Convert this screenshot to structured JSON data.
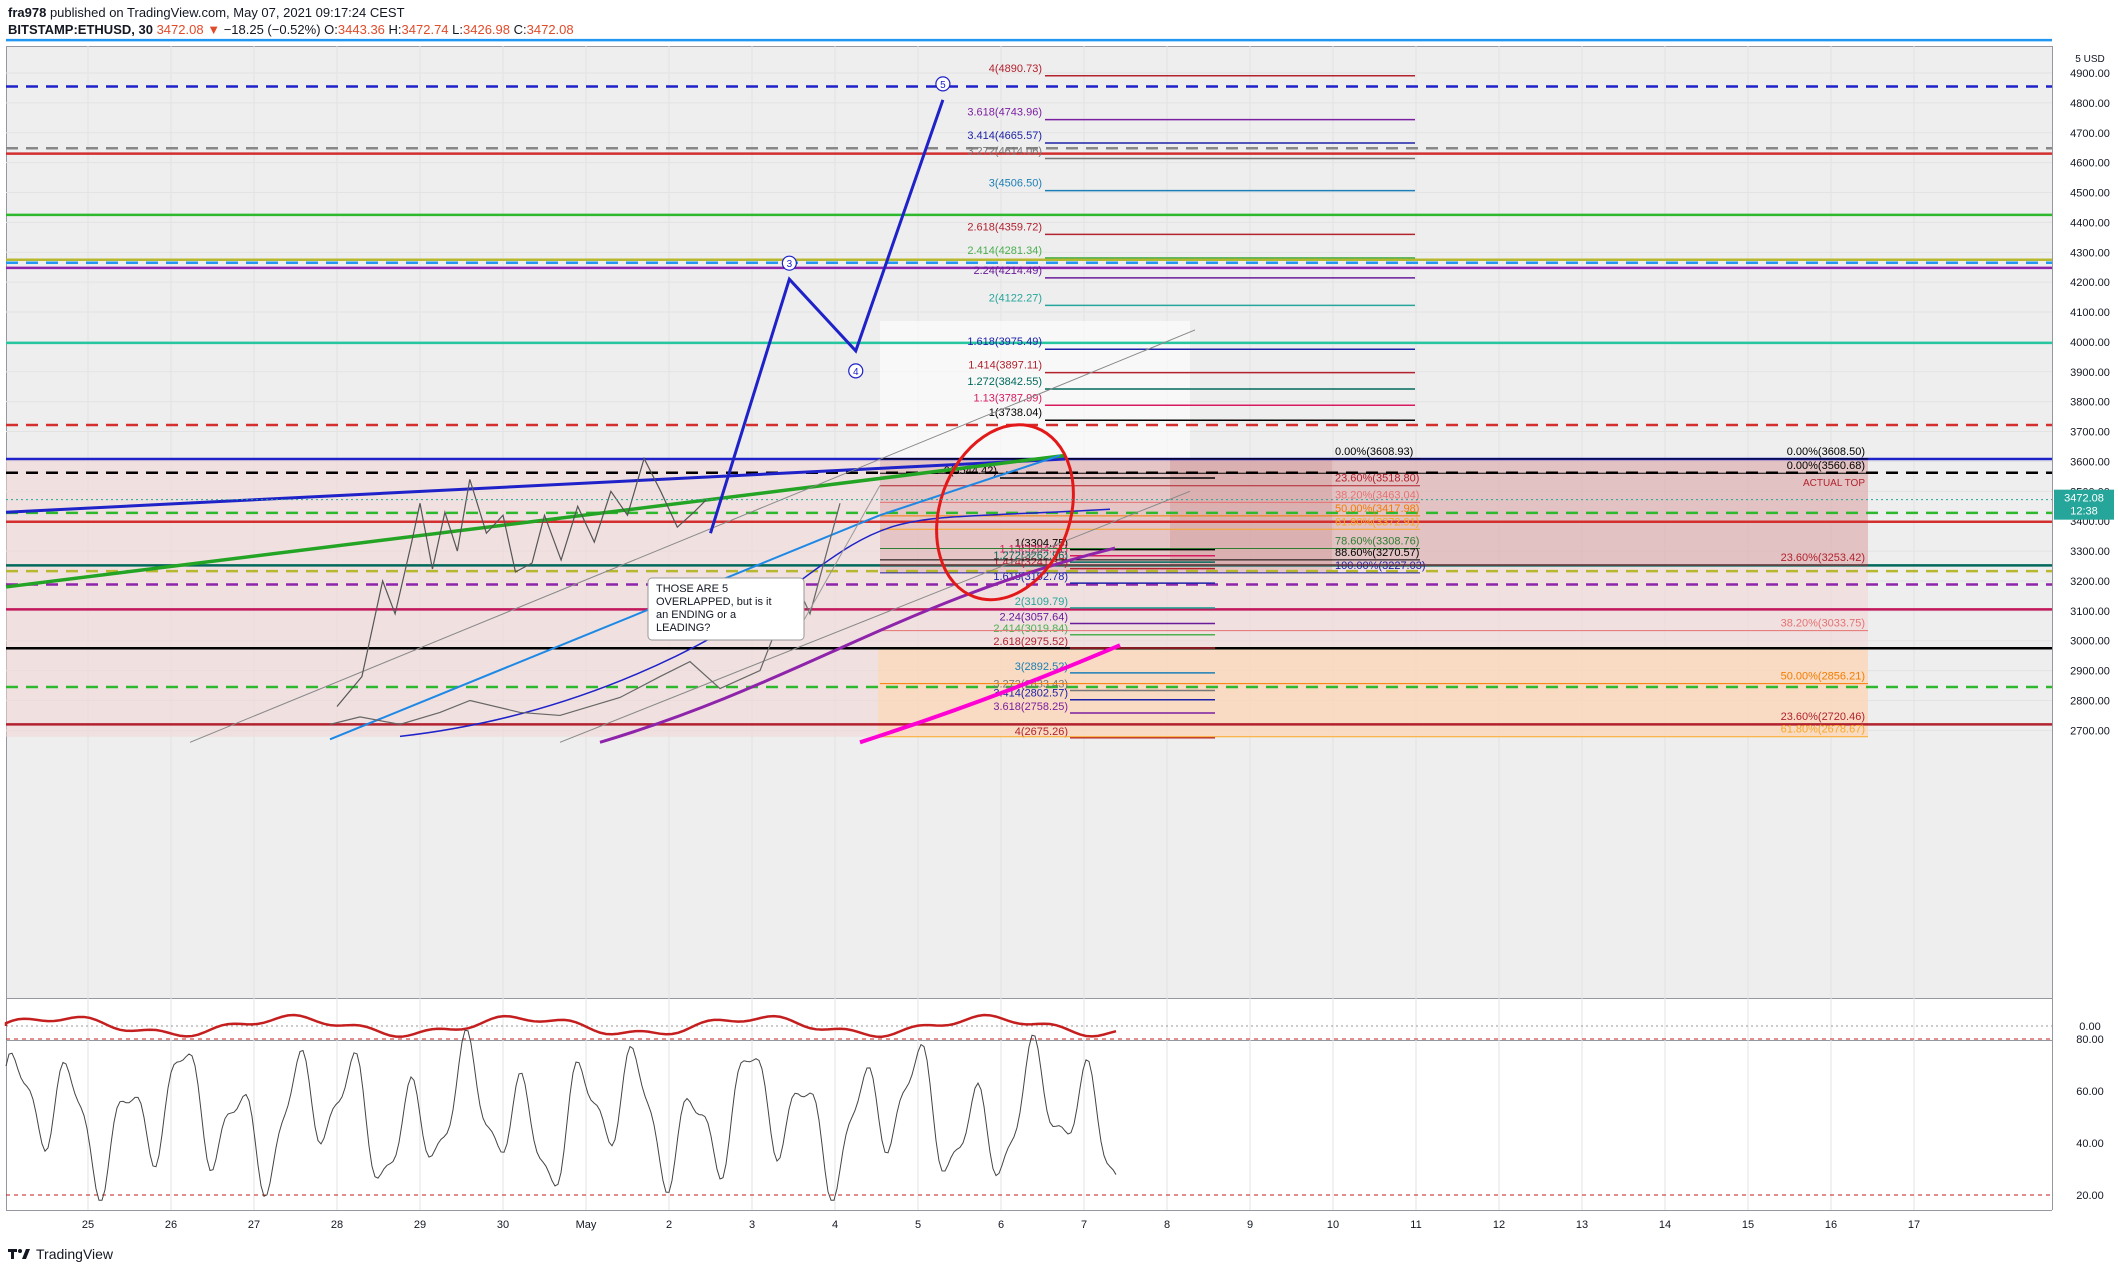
{
  "header": {
    "author": "fra978",
    "published": "published on TradingView.com, May 07, 2021 09:17:24 CEST",
    "symbol": "BITSTAMP:ETHUSD, 30",
    "last": "3472.08",
    "change": "−18.25 (−0.52%)",
    "o_label": "O:",
    "o": "3443.36",
    "h_label": "H:",
    "h": "3472.74",
    "l_label": "L:",
    "l": "3426.98",
    "c_label": "C:",
    "c": "3472.08"
  },
  "footer": {
    "brand": "TradingView"
  },
  "colors": {
    "up": "#e04b2a",
    "blue_wave": "#1e22c8",
    "grid": "#e0e3eb",
    "bg": "#eeeeee"
  },
  "chart_data": {
    "type": "line",
    "currency": "5 USD",
    "price_axis": [
      {
        "value": 4900,
        "label": "4900.00"
      },
      {
        "value": 4800,
        "label": "4800.00"
      },
      {
        "value": 4700,
        "label": "4700.00"
      },
      {
        "value": 4600,
        "label": "4600.00"
      },
      {
        "value": 4500,
        "label": "4500.00"
      },
      {
        "value": 4400,
        "label": "4400.00"
      },
      {
        "value": 4300,
        "label": "4300.00"
      },
      {
        "value": 4200,
        "label": "4200.00"
      },
      {
        "value": 4100,
        "label": "4100.00"
      },
      {
        "value": 4000,
        "label": "4000.00"
      },
      {
        "value": 3900,
        "label": "3900.00"
      },
      {
        "value": 3800,
        "label": "3800.00"
      },
      {
        "value": 3700,
        "label": "3700.00"
      },
      {
        "value": 3600,
        "label": "3600.00"
      },
      {
        "value": 3500,
        "label": "3500.00"
      },
      {
        "value": 3400,
        "label": "3400.00"
      },
      {
        "value": 3300,
        "label": "3300.00"
      },
      {
        "value": 3200,
        "label": "3200.00"
      },
      {
        "value": 3100,
        "label": "3100.00"
      },
      {
        "value": 3000,
        "label": "3000.00"
      },
      {
        "value": 2900,
        "label": "2900.00"
      },
      {
        "value": 2800,
        "label": "2800.00"
      },
      {
        "value": 2700,
        "label": "2700.00"
      }
    ],
    "ylim": [
      2660,
      5010
    ],
    "last_price": {
      "value": 3472.08,
      "label": "3472.08",
      "countdown": "12:38"
    },
    "x_ticks": [
      "25",
      "26",
      "27",
      "28",
      "29",
      "30",
      "May",
      "2",
      "3",
      "4",
      "5",
      "6",
      "7",
      "8",
      "9",
      "10",
      "11",
      "12",
      "13",
      "14",
      "15",
      "16",
      "17"
    ],
    "wave_projection": {
      "points": [
        {
          "day": 7.5,
          "price": 3360
        },
        {
          "day": 8.45,
          "price": 4210
        },
        {
          "day": 9.25,
          "price": 3970
        },
        {
          "day": 10.3,
          "price": 4810
        }
      ],
      "labels": [
        "3",
        "4",
        "5"
      ]
    },
    "price_path": [
      {
        "day": 3.0,
        "price": 2780
      },
      {
        "day": 3.3,
        "price": 2880
      },
      {
        "day": 3.55,
        "price": 3200
      },
      {
        "day": 3.7,
        "price": 3090
      },
      {
        "day": 3.9,
        "price": 3330
      },
      {
        "day": 4.0,
        "price": 3460
      },
      {
        "day": 4.15,
        "price": 3240
      },
      {
        "day": 4.3,
        "price": 3430
      },
      {
        "day": 4.45,
        "price": 3300
      },
      {
        "day": 4.6,
        "price": 3540
      },
      {
        "day": 4.8,
        "price": 3360
      },
      {
        "day": 5.0,
        "price": 3420
      },
      {
        "day": 5.15,
        "price": 3230
      },
      {
        "day": 5.35,
        "price": 3260
      },
      {
        "day": 5.5,
        "price": 3420
      },
      {
        "day": 5.7,
        "price": 3270
      },
      {
        "day": 5.9,
        "price": 3450
      },
      {
        "day": 6.1,
        "price": 3330
      },
      {
        "day": 6.3,
        "price": 3500
      },
      {
        "day": 6.5,
        "price": 3420
      },
      {
        "day": 6.7,
        "price": 3610
      },
      {
        "day": 6.9,
        "price": 3500
      },
      {
        "day": 7.1,
        "price": 3380
      },
      {
        "day": 7.3,
        "price": 3430
      },
      {
        "day": 7.45,
        "price": 3472
      }
    ],
    "fib_upper": [
      {
        "label": "4(4890.73)",
        "value": 4890.73,
        "color": "#b2222f"
      },
      {
        "label": "3.618(4743.96)",
        "value": 4743.96,
        "color": "#7b1fa2"
      },
      {
        "label": "3.414(4665.57)",
        "value": 4665.57,
        "color": "#1e22a8"
      },
      {
        "label": "3.272(4614.06)",
        "value": 4614.06,
        "color": "#777777"
      },
      {
        "label": "3(4506.50)",
        "value": 4506.5,
        "color": "#1c7fb6"
      },
      {
        "label": "2.618(4359.72)",
        "value": 4359.72,
        "color": "#b2222f"
      },
      {
        "label": "2.414(4281.34)",
        "value": 4281.34,
        "color": "#4caf50"
      },
      {
        "label": "2.24(4214.49)",
        "value": 4214.49,
        "color": "#6a1b9a"
      },
      {
        "label": "2(4122.27)",
        "value": 4122.27,
        "color": "#26a69a"
      },
      {
        "label": "1.618(3975.49)",
        "value": 3975.49,
        "color": "#1e22a8"
      },
      {
        "label": "1.414(3897.11)",
        "value": 3897.11,
        "color": "#b2222f"
      },
      {
        "label": "1.272(3842.55)",
        "value": 3842.55,
        "color": "#00695c"
      },
      {
        "label": "1.13(3787.99)",
        "value": 3787.99,
        "color": "#d81b60"
      },
      {
        "label": "1(3738.04)",
        "value": 3738.04,
        "color": "#000000"
      },
      {
        "label": "0(3544.42)",
        "value": 3544.42,
        "color": "#000000"
      }
    ],
    "fib_lower": [
      {
        "label": "1(3304.75)",
        "value": 3304.75,
        "color": "#000000"
      },
      {
        "label": "1.13(3284.51)",
        "value": 3284.51,
        "color": "#d81b60"
      },
      {
        "label": "1.272(3262.96)",
        "value": 3262.96,
        "color": "#00695c"
      },
      {
        "label": "1.414(3241.37)",
        "value": 3241.37,
        "color": "#b2222f"
      },
      {
        "label": "1.618(3192.78)",
        "value": 3192.78,
        "color": "#1e22a8"
      },
      {
        "label": "2(3109.79)",
        "value": 3109.79,
        "color": "#26a69a"
      },
      {
        "label": "2.24(3057.64)",
        "value": 3057.64,
        "color": "#6a1b9a"
      },
      {
        "label": "2.414(3019.84)",
        "value": 3019.84,
        "color": "#4caf50"
      },
      {
        "label": "2.618(2975.52)",
        "value": 2975.52,
        "color": "#b2222f"
      },
      {
        "label": "3(2892.52)",
        "value": 2892.52,
        "color": "#1c7fb6"
      },
      {
        "label": "3.272(2833.43)",
        "value": 2833.43,
        "color": "#777777"
      },
      {
        "label": "3.414(2802.57)",
        "value": 2802.57,
        "color": "#1e22a8"
      },
      {
        "label": "3.618(2758.25)",
        "value": 2758.25,
        "color": "#7b1fa2"
      },
      {
        "label": "4(2675.26)",
        "value": 2675.26,
        "color": "#b2222f"
      }
    ],
    "retracement_mid": [
      {
        "label": "0.00%(3608.93)",
        "value": 3608.93,
        "color": "#000000"
      },
      {
        "label": "23.60%(3518.80)",
        "value": 3518.8,
        "color": "#b2222f"
      },
      {
        "label": "38.20%(3463.04)",
        "value": 3463.04,
        "color": "#e57373"
      },
      {
        "label": "50.00%(3417.98)",
        "value": 3417.98,
        "color": "#f57c00"
      },
      {
        "label": "61.80%(3372.91)",
        "value": 3372.91,
        "color": "#f9a825"
      },
      {
        "label": "78.60%(3308.76)",
        "value": 3308.76,
        "color": "#2e7d32"
      },
      {
        "label": "88.60%(3270.57)",
        "value": 3270.57,
        "color": "#000000"
      },
      {
        "label": "100.00%(3227.03)",
        "value": 3227.03,
        "color": "#1e22a8"
      }
    ],
    "retracement_right": [
      {
        "label": "0.00%(3608.50)",
        "value": 3608.5,
        "color": "#000000"
      },
      {
        "label": "0.00%(3560.68)",
        "value": 3560.68,
        "color": "#000000"
      },
      {
        "label": "23.60%(3253.42)",
        "value": 3253.42,
        "color": "#b2222f"
      },
      {
        "label": "38.20%(3033.75)",
        "value": 3033.75,
        "color": "#e57373"
      },
      {
        "label": "50.00%(2856.21)",
        "value": 2856.21,
        "color": "#f57c00"
      },
      {
        "label": "23.60%(2720.46)",
        "value": 2720.46,
        "color": "#b2222f"
      },
      {
        "label": "61.80%(2678.67)",
        "value": 2678.67,
        "color": "#f9a825"
      }
    ],
    "actual_top_label": "ACTUAL TOP",
    "callout_text": "THOSE ARE 5 OVERLAPPED, but is it an ENDING or a LEADING?",
    "horizontal_levels": [
      {
        "value": 5010,
        "color": "#2196f3",
        "style": "solid"
      },
      {
        "value": 4855,
        "color": "#1e22c8",
        "style": "dashed"
      },
      {
        "value": 4648,
        "color": "#888888",
        "style": "dashed"
      },
      {
        "value": 4630,
        "color": "#d32f2f",
        "style": "solid"
      },
      {
        "value": 4425,
        "color": "#2eb82e",
        "style": "solid"
      },
      {
        "value": 4275,
        "color": "#b8b82e",
        "style": "solid"
      },
      {
        "value": 4265,
        "color": "#2196f3",
        "style": "dashed"
      },
      {
        "value": 4248,
        "color": "#8e24aa",
        "style": "solid"
      },
      {
        "value": 3997,
        "color": "#26c6a0",
        "style": "solid"
      },
      {
        "value": 3722,
        "color": "#d32f2f",
        "style": "dashed"
      },
      {
        "value": 3608,
        "color": "#1e22c8",
        "style": "solid"
      },
      {
        "value": 3562,
        "color": "#000000",
        "style": "dashed"
      },
      {
        "value": 3428,
        "color": "#2eb82e",
        "style": "dashed"
      },
      {
        "value": 3398,
        "color": "#d32f2f",
        "style": "solid"
      },
      {
        "value": 3252,
        "color": "#00695c",
        "style": "solid"
      },
      {
        "value": 3233,
        "color": "#b8b82e",
        "style": "dashed"
      },
      {
        "value": 3188,
        "color": "#8e24aa",
        "style": "dashed"
      },
      {
        "value": 3105,
        "color": "#c2185b",
        "style": "solid"
      },
      {
        "value": 2975,
        "color": "#000000",
        "style": "solid"
      },
      {
        "value": 2845,
        "color": "#2eb82e",
        "style": "dashed"
      },
      {
        "value": 2720,
        "color": "#b2222f",
        "style": "solid"
      }
    ],
    "macd_axis": [
      {
        "value": 0,
        "label": "0.00"
      }
    ],
    "rsi_axis": [
      {
        "value": 80,
        "label": "80.00"
      },
      {
        "value": 60,
        "label": "60.00"
      },
      {
        "value": 40,
        "label": "40.00"
      },
      {
        "value": 20,
        "label": "20.00"
      }
    ]
  }
}
